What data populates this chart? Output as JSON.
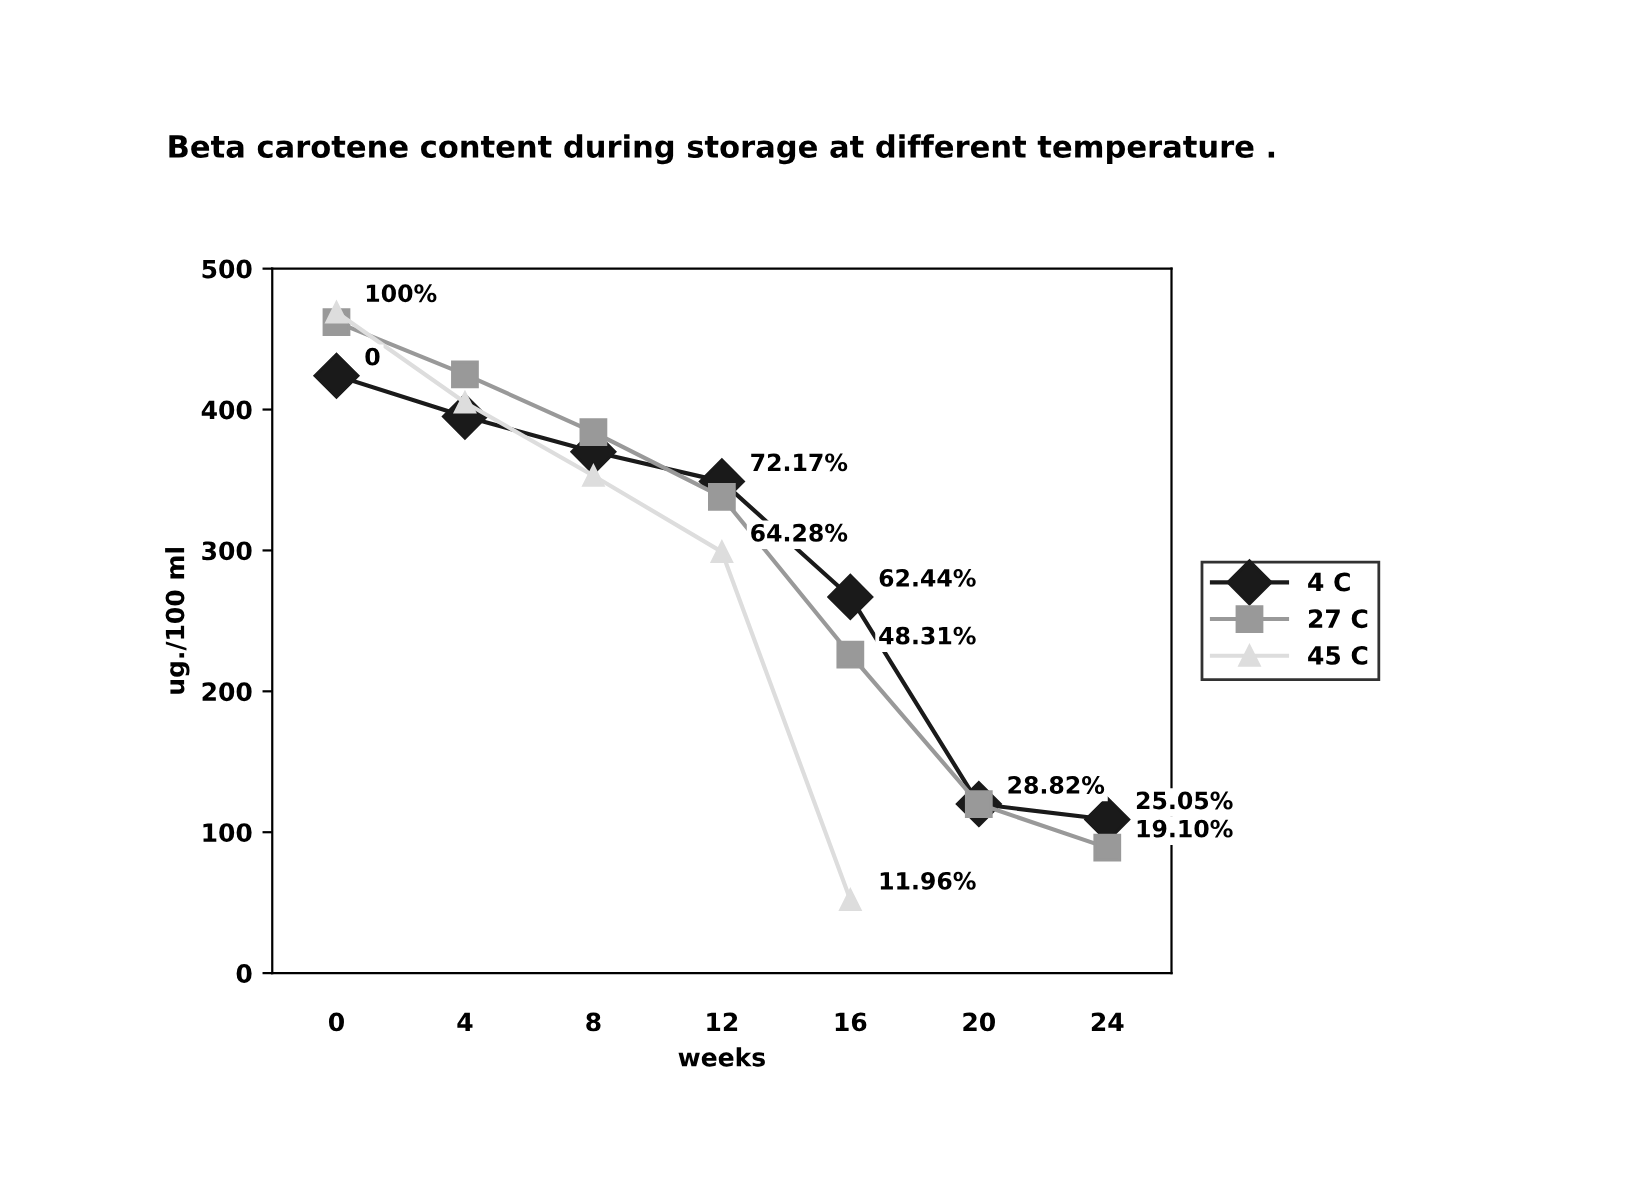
{
  "chart_data": {
    "type": "line",
    "title": "Beta carotene content during storage at different temperature .",
    "xlabel": "weeks",
    "ylabel": "ug./100 ml",
    "categories": [
      "0",
      "4",
      "8",
      "12",
      "16",
      "20",
      "24"
    ],
    "ylim": [
      0,
      500
    ],
    "yticks": [
      0,
      100,
      200,
      300,
      400,
      500
    ],
    "grid": false,
    "legend": "right",
    "series": [
      {
        "name": "4 C",
        "color": "#1a1a1a",
        "marker": "diamond",
        "values": [
          424,
          395,
          370,
          349,
          267,
          120,
          109
        ]
      },
      {
        "name": "27 C",
        "color": "#999999",
        "marker": "square",
        "values": [
          462,
          425,
          384,
          338,
          226,
          120,
          89
        ]
      },
      {
        "name": "45 C",
        "color": "#dddddd",
        "marker": "triangle",
        "values": [
          469,
          405,
          353,
          299,
          52,
          null,
          null
        ]
      }
    ],
    "annotations": [
      {
        "text": "0",
        "x": "0",
        "y": 424
      },
      {
        "text": "100%",
        "x": "0",
        "y": 469
      },
      {
        "text": "72.17%",
        "x": "12",
        "y": 349
      },
      {
        "text": "64.28%",
        "x": "12",
        "y": 299
      },
      {
        "text": "62.44%",
        "x": "16",
        "y": 267
      },
      {
        "text": "48.31%",
        "x": "16",
        "y": 226
      },
      {
        "text": "11.96%",
        "x": "16",
        "y": 52
      },
      {
        "text": "28.82%",
        "x": "20",
        "y": 120
      },
      {
        "text": "25.05%",
        "x": "24",
        "y": 109
      },
      {
        "text": "19.10%",
        "x": "24",
        "y": 89
      }
    ]
  }
}
